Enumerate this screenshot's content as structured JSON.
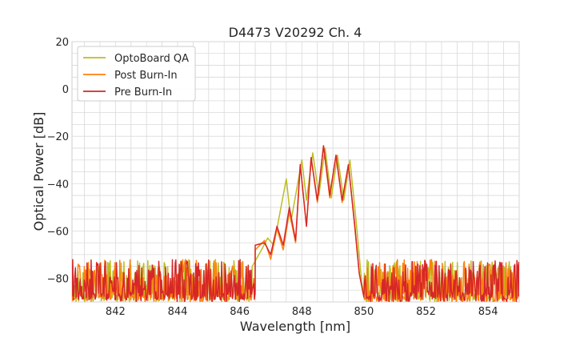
{
  "chart_data": {
    "type": "line",
    "title": "D4473 V20292 Ch. 4",
    "xlabel": "Wavelength [nm]",
    "ylabel": "Optical Power [dB]",
    "xlim": [
      840.6,
      855.0
    ],
    "ylim": [
      -90,
      20
    ],
    "x_ticks": [
      842,
      844,
      846,
      848,
      850,
      852,
      854
    ],
    "x_tick_labels": [
      "842",
      "844",
      "846",
      "848",
      "850",
      "852",
      "854"
    ],
    "y_ticks": [
      20,
      0,
      -20,
      -40,
      -60,
      -80
    ],
    "y_tick_labels": [
      "20",
      "0",
      "−20",
      "−40",
      "−60",
      "−80"
    ],
    "minor_grid": true,
    "legend_position": "top-left",
    "noise_floor": {
      "min": -90,
      "max": -72
    },
    "series": [
      {
        "name": "OptoBoard QA",
        "color": "#bcbd22",
        "x": [
          846.4,
          846.7,
          846.9,
          847.1,
          847.3,
          847.5,
          847.65,
          847.8,
          848.0,
          848.15,
          848.35,
          848.55,
          848.75,
          848.95,
          849.15,
          849.35,
          849.55,
          849.75,
          849.95
        ],
        "y": [
          -75,
          -68,
          -63,
          -66,
          -52,
          -38,
          -56,
          -45,
          -30,
          -47,
          -27,
          -45,
          -25,
          -46,
          -28,
          -47,
          -30,
          -56,
          -85
        ]
      },
      {
        "name": "Post Burn-In",
        "color": "#ff7f0e",
        "x": [
          846.5,
          846.8,
          847.0,
          847.2,
          847.4,
          847.6,
          847.8,
          847.95,
          848.15,
          848.3,
          848.5,
          848.7,
          848.9,
          849.1,
          849.3,
          849.5,
          849.7,
          849.85,
          850.0
        ],
        "y": [
          -68,
          -64,
          -72,
          -59,
          -68,
          -52,
          -65,
          -32,
          -58,
          -29,
          -48,
          -24,
          -46,
          -28,
          -48,
          -32,
          -58,
          -78,
          -88
        ]
      },
      {
        "name": "Pre Burn-In",
        "color": "#d62728",
        "x": [
          846.5,
          846.8,
          847.0,
          847.2,
          847.4,
          847.6,
          847.8,
          847.95,
          848.15,
          848.3,
          848.5,
          848.7,
          848.9,
          849.1,
          849.3,
          849.5,
          849.7,
          849.85,
          850.0
        ],
        "y": [
          -66,
          -65,
          -70,
          -58,
          -66,
          -50,
          -64,
          -32,
          -58,
          -29,
          -47,
          -24,
          -45,
          -28,
          -47,
          -32,
          -57,
          -78,
          -88
        ]
      }
    ]
  }
}
